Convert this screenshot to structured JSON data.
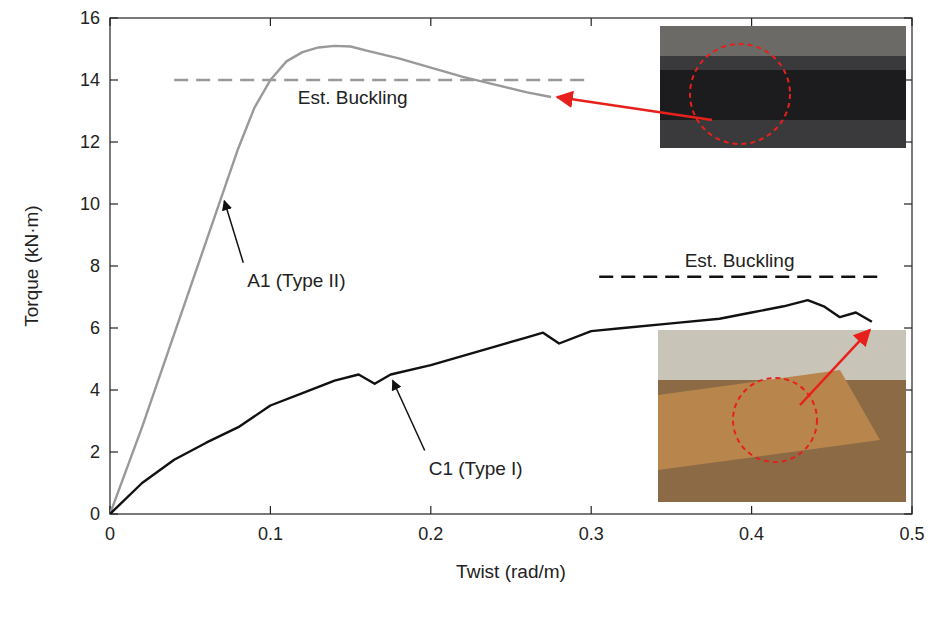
{
  "chart_data": {
    "type": "line",
    "x_label": "Twist (rad/m)",
    "y_label": "Torque (kN·m)",
    "xlim": [
      0,
      0.5
    ],
    "xticks": [
      0,
      0.1,
      0.2,
      0.3,
      0.4,
      {
        "value": 0.5,
        "label": "0.5"
      }
    ],
    "ylim": [
      0,
      16
    ],
    "yticks": [
      0,
      2,
      4,
      6,
      8,
      10,
      12,
      14,
      16
    ],
    "grid": false,
    "series": [
      {
        "name": "A1 (Type II)",
        "color": "#999999",
        "x": [
          0,
          0.02,
          0.04,
          0.06,
          0.07,
          0.08,
          0.09,
          0.1,
          0.11,
          0.12,
          0.13,
          0.14,
          0.15,
          0.16,
          0.18,
          0.2,
          0.22,
          0.24,
          0.26,
          0.275
        ],
        "values": [
          0,
          2.8,
          5.8,
          8.8,
          10.3,
          11.8,
          13.1,
          14.0,
          14.6,
          14.9,
          15.05,
          15.1,
          15.08,
          14.95,
          14.7,
          14.4,
          14.1,
          13.85,
          13.6,
          13.45
        ]
      },
      {
        "name": "C1 (Type I)",
        "color": "#111111",
        "x": [
          0,
          0.02,
          0.04,
          0.06,
          0.08,
          0.1,
          0.12,
          0.14,
          0.155,
          0.165,
          0.175,
          0.2,
          0.22,
          0.24,
          0.26,
          0.27,
          0.28,
          0.3,
          0.32,
          0.35,
          0.38,
          0.4,
          0.42,
          0.435,
          0.445,
          0.455,
          0.465,
          0.475
        ],
        "values": [
          0,
          1.0,
          1.75,
          2.3,
          2.8,
          3.5,
          3.9,
          4.3,
          4.5,
          4.2,
          4.5,
          4.8,
          5.1,
          5.4,
          5.7,
          5.85,
          5.5,
          5.9,
          6.0,
          6.15,
          6.3,
          6.5,
          6.7,
          6.9,
          6.7,
          6.35,
          6.5,
          6.2
        ]
      }
    ],
    "reference_lines": [
      {
        "label": "Est. Buckling",
        "value": 14,
        "x_range": [
          0.04,
          0.3
        ],
        "color": "#999999",
        "line_style": "dashed"
      },
      {
        "label": "Est. Buckling",
        "value": 7.65,
        "x_range": [
          0.305,
          0.48
        ],
        "color": "#111111",
        "line_style": "dashed"
      }
    ]
  }
}
